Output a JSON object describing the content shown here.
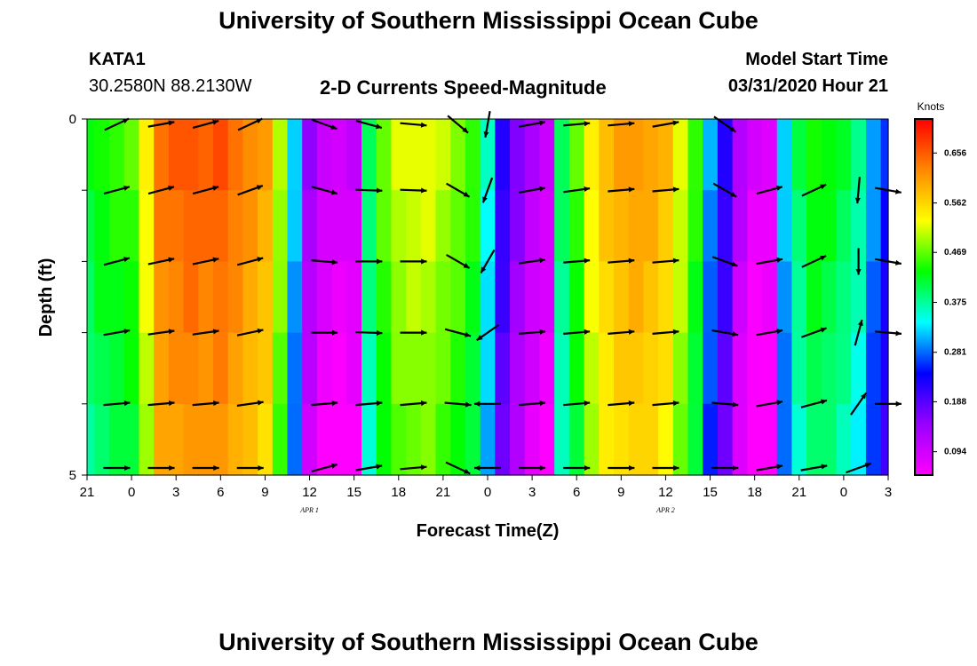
{
  "header": {
    "title": "University of Southern Mississippi Ocean Cube",
    "station": "KATA1",
    "coords": "30.2580N 88.2130W",
    "plot_title": "2-D Currents Speed-Magnitude",
    "model_label": "Model Start Time",
    "model_time": "03/31/2020 Hour 21"
  },
  "footer": {
    "title": "University of Southern Mississippi Ocean Cube"
  },
  "chart_data": {
    "type": "heatmap",
    "title": "2-D Currents Speed-Magnitude",
    "xlabel": "Forecast Time(Z)",
    "ylabel": "Depth (ft)",
    "ylim": [
      0,
      5
    ],
    "y_tick_labels": [
      "0",
      "5"
    ],
    "x_tick_labels": [
      "21",
      "0",
      "3",
      "6",
      "9",
      "12",
      "15",
      "18",
      "21",
      "0",
      "3",
      "6",
      "9",
      "12",
      "15",
      "18",
      "21",
      "0",
      "3"
    ],
    "date_labels": [
      {
        "text": "APR 1",
        "at_hour": 15
      },
      {
        "text": "APR 2",
        "at_hour": 39
      }
    ],
    "colorbar": {
      "label": "Knots",
      "ticks": [
        "0.656",
        "0.562",
        "0.469",
        "0.375",
        "0.281",
        "0.188",
        "0.094"
      ],
      "range": [
        0.05,
        0.72
      ],
      "colors": [
        "#ff00ff",
        "#9900ff",
        "#0000ff",
        "#00ffff",
        "#00ff00",
        "#ffff00",
        "#ff8800",
        "#ff0000"
      ]
    },
    "hours": [
      0,
      1,
      2,
      3,
      4,
      5,
      6,
      7,
      8,
      9,
      10,
      11,
      12,
      13,
      14,
      15,
      16,
      17,
      18,
      19,
      20,
      21,
      22,
      23,
      24,
      25,
      26,
      27,
      28,
      29,
      30,
      31,
      32,
      33,
      34,
      35,
      36,
      37,
      38,
      39,
      40,
      41,
      42,
      43,
      44,
      45,
      46,
      47,
      48,
      49,
      50,
      51,
      52,
      53,
      54
    ],
    "depth_levels": [
      0,
      1,
      2,
      3,
      4,
      5
    ],
    "speed_by_hour": [
      0.42,
      0.44,
      0.45,
      0.46,
      0.54,
      0.64,
      0.65,
      0.66,
      0.65,
      0.66,
      0.64,
      0.62,
      0.6,
      0.5,
      0.32,
      0.14,
      0.1,
      0.09,
      0.1,
      0.4,
      0.47,
      0.51,
      0.52,
      0.52,
      0.5,
      0.48,
      0.45,
      0.35,
      0.22,
      0.16,
      0.12,
      0.1,
      0.4,
      0.46,
      0.54,
      0.58,
      0.6,
      0.61,
      0.6,
      0.58,
      0.52,
      0.45,
      0.3,
      0.22,
      0.12,
      0.08,
      0.08,
      0.32,
      0.4,
      0.44,
      0.43,
      0.41,
      0.38,
      0.3,
      0.25
    ],
    "arrows": [
      {
        "hour": 2,
        "depths": [
          0,
          1,
          2,
          3,
          4,
          5
        ],
        "angles": [
          -25,
          -15,
          -15,
          -10,
          -5,
          0
        ]
      },
      {
        "hour": 5,
        "depths": [
          0,
          1,
          2,
          3,
          4,
          5
        ],
        "angles": [
          -10,
          -15,
          -12,
          -8,
          -5,
          0
        ]
      },
      {
        "hour": 8,
        "depths": [
          0,
          1,
          2,
          3,
          4,
          5
        ],
        "angles": [
          -15,
          -15,
          -12,
          -8,
          -5,
          0
        ]
      },
      {
        "hour": 11,
        "depths": [
          0,
          1,
          2,
          3,
          4,
          5
        ],
        "angles": [
          -25,
          -20,
          -15,
          -12,
          -8,
          0
        ]
      },
      {
        "hour": 16,
        "depths": [
          0,
          1,
          2,
          3,
          4,
          5
        ],
        "angles": [
          20,
          15,
          5,
          0,
          -5,
          -15
        ]
      },
      {
        "hour": 19,
        "depths": [
          0,
          1,
          2,
          3,
          4,
          5
        ],
        "angles": [
          15,
          2,
          0,
          2,
          -5,
          -10
        ]
      },
      {
        "hour": 22,
        "depths": [
          0,
          1,
          2,
          3,
          4,
          5
        ],
        "angles": [
          5,
          2,
          0,
          0,
          -5,
          -5
        ]
      },
      {
        "hour": 25,
        "depths": [
          0,
          1,
          2,
          3,
          4,
          5
        ],
        "angles": [
          40,
          30,
          30,
          15,
          5,
          25
        ]
      },
      {
        "hour": 27,
        "depths": [
          0,
          1,
          2,
          3,
          4,
          5
        ],
        "angles": [
          100,
          110,
          120,
          145,
          180,
          180
        ]
      },
      {
        "hour": 30,
        "depths": [
          0,
          1,
          2,
          3,
          4,
          5
        ],
        "angles": [
          -10,
          -10,
          -8,
          -5,
          -5,
          0
        ]
      },
      {
        "hour": 33,
        "depths": [
          0,
          1,
          2,
          3,
          4,
          5
        ],
        "angles": [
          -5,
          -8,
          -5,
          -5,
          -5,
          0
        ]
      },
      {
        "hour": 36,
        "depths": [
          0,
          1,
          2,
          3,
          4,
          5
        ],
        "angles": [
          -5,
          -5,
          -5,
          -5,
          -5,
          0
        ]
      },
      {
        "hour": 39,
        "depths": [
          0,
          1,
          2,
          3,
          4,
          5
        ],
        "angles": [
          -10,
          -5,
          -5,
          -5,
          -5,
          0
        ]
      },
      {
        "hour": 43,
        "depths": [
          0,
          1,
          2,
          3,
          4,
          5
        ],
        "angles": [
          35,
          30,
          20,
          10,
          5,
          0
        ]
      },
      {
        "hour": 46,
        "depths": [
          1,
          2,
          3,
          4,
          5
        ],
        "angles": [
          -15,
          -10,
          -10,
          -10,
          -10
        ]
      },
      {
        "hour": 49,
        "depths": [
          1,
          2,
          3,
          4,
          5
        ],
        "angles": [
          -25,
          -25,
          -20,
          -15,
          -10
        ]
      },
      {
        "hour": 52,
        "depths": [
          1,
          2,
          3,
          4,
          5
        ],
        "angles": [
          95,
          90,
          -75,
          -55,
          -20
        ]
      },
      {
        "hour": 54,
        "depths": [
          1,
          2,
          3,
          4
        ],
        "angles": [
          10,
          10,
          5,
          0
        ]
      }
    ]
  }
}
